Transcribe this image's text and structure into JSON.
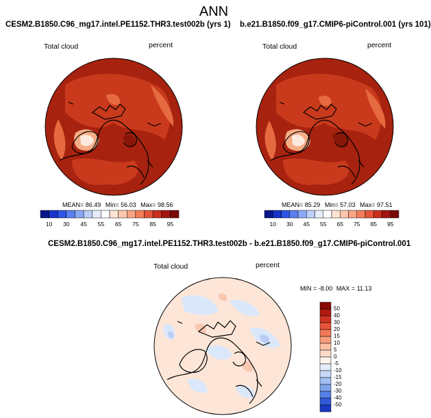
{
  "title": "ANN",
  "panels": [
    {
      "run": "CESM2.B1850.C96_mg17.intel.PE1152.THR3.test002b (yrs 1)",
      "variable": "Total cloud",
      "units": "percent",
      "stats": {
        "mean_label": "MEAN=",
        "mean": "86.49",
        "min_label": "Min=",
        "min": "56.03",
        "max_label": "Max=",
        "max": "98.56"
      }
    },
    {
      "run": "b.e21.B1850.f09_g17.CMIP6-piControl.001 (yrs 101)",
      "variable": "Total cloud",
      "units": "percent",
      "stats": {
        "mean_label": "MEAN=",
        "mean": "85.29",
        "min_label": "Min=",
        "min": "57.03",
        "max_label": "Max=",
        "max": "97.51"
      }
    }
  ],
  "diff_panel": {
    "title": "CESM2.B1850.C96_mg17.intel.PE1152.THR3.test002b - b.e21.B1850.f09_g17.CMIP6-piControl.001",
    "variable": "Total cloud",
    "units": "percent",
    "stats": {
      "min_label": "MIN =",
      "min": "-8.00",
      "max_label": "MAX =",
      "max": "11.13"
    }
  },
  "colorbar_abs": {
    "ticks": [
      "10",
      "30",
      "45",
      "55",
      "65",
      "75",
      "85",
      "95"
    ],
    "colors": [
      "#08188a",
      "#1a33c8",
      "#2f55e6",
      "#5a80ef",
      "#8aa8f5",
      "#bccff8",
      "#e6ecfa",
      "#ffffff",
      "#fde3d3",
      "#fcc7ad",
      "#f9a483",
      "#f47d5a",
      "#e5543a",
      "#c92f1c",
      "#a3150f",
      "#7a0704"
    ]
  },
  "colorbar_diff": {
    "ticks": [
      "50",
      "40",
      "30",
      "20",
      "15",
      "10",
      "5",
      "0",
      "-5",
      "-10",
      "-15",
      "-20",
      "-30",
      "-40",
      "-50"
    ],
    "colors": [
      "#8a0a05",
      "#b01a10",
      "#cf3421",
      "#e5543a",
      "#f27a58",
      "#f89d7c",
      "#fbbfa3",
      "#fddbc9",
      "#fff4ec",
      "#e3ecfb",
      "#c7d8f7",
      "#a3bff2",
      "#7ea3ec",
      "#5580e4",
      "#2f5ad8",
      "#1b3ac2"
    ]
  },
  "map_colors": {
    "abs_ocean": "#a7220f",
    "abs_mid": "#c93a1c",
    "abs_light": "#e66a3f",
    "abs_pale": "#f6ad86",
    "abs_white": "#fbe9df",
    "diff_base": "#fde6d8",
    "diff_blue": "#dbe7fa",
    "diff_blue2": "#b9cdf4",
    "diff_pink": "#f8c8b0"
  }
}
